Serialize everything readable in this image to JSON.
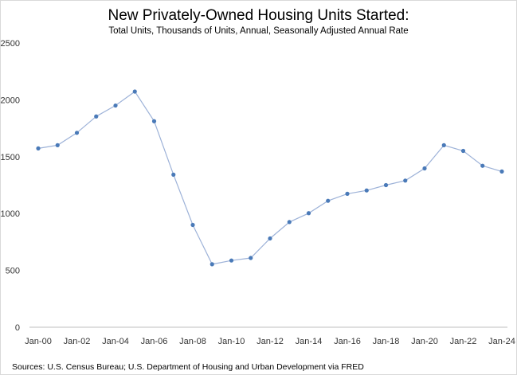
{
  "chart_data": {
    "type": "line",
    "title": "New Privately-Owned Housing Units Started:",
    "subtitle": "Total Units, Thousands of Units, Annual, Seasonally Adjusted Annual Rate",
    "source": "Sources: U.S. Census Bureau; U.S. Department of Housing and Urban Development via FRED",
    "xlabel": "",
    "ylabel": "",
    "ylim": [
      0,
      2500
    ],
    "yticks": [
      "0",
      "500",
      "1000",
      "1500",
      "2000",
      "2500"
    ],
    "xticks": [
      "Jan-00",
      "Jan-02",
      "Jan-04",
      "Jan-06",
      "Jan-08",
      "Jan-10",
      "Jan-12",
      "Jan-14",
      "Jan-16",
      "Jan-18",
      "Jan-20",
      "Jan-22",
      "Jan-24"
    ],
    "grid": false,
    "x": [
      "2000",
      "2001",
      "2002",
      "2003",
      "2004",
      "2005",
      "2006",
      "2007",
      "2008",
      "2009",
      "2010",
      "2011",
      "2012",
      "2013",
      "2014",
      "2015",
      "2016",
      "2017",
      "2018",
      "2019",
      "2020",
      "2021",
      "2022",
      "2023",
      "2024"
    ],
    "values": [
      1573,
      1601,
      1710,
      1854,
      1950,
      2073,
      1812,
      1342,
      900,
      554,
      587,
      609,
      781,
      925,
      1003,
      1112,
      1174,
      1203,
      1250,
      1290,
      1397,
      1601,
      1551,
      1420,
      1370
    ],
    "colors": {
      "line": "#9db2d8",
      "marker": "#4a7ab8",
      "axis": "#bfbfbf"
    }
  }
}
